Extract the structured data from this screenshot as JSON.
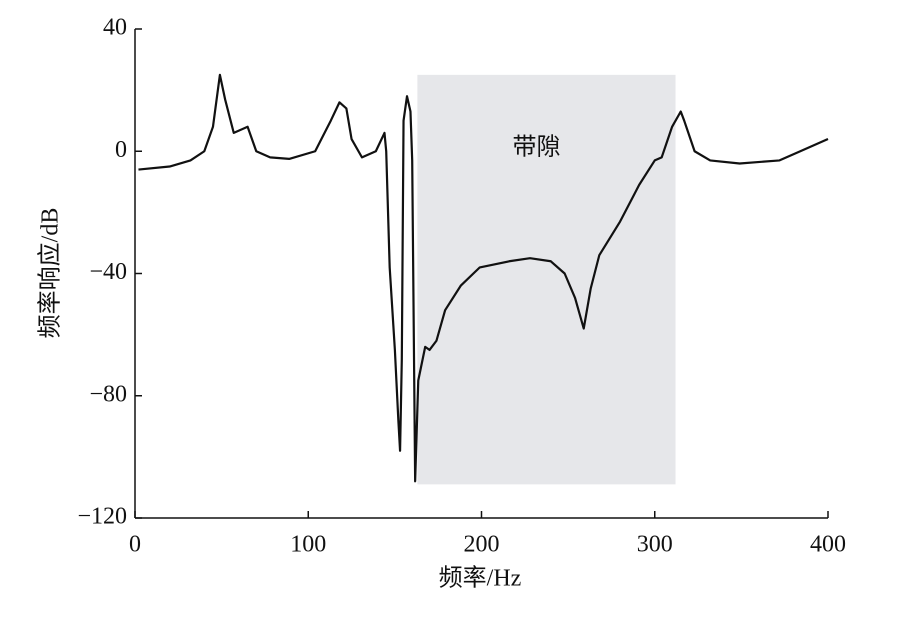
{
  "chart_data": {
    "type": "line",
    "x_label": "频率/Hz",
    "y_label": "频率响应/dB",
    "xlim": [
      0,
      400
    ],
    "xticks": [
      0,
      100,
      200,
      300,
      400
    ],
    "ylim": [
      -120,
      40
    ],
    "yticks": [
      {
        "value": -120,
        "label": "−120"
      },
      {
        "value": -80,
        "label": "−80"
      },
      {
        "value": -40,
        "label": "−40"
      },
      0,
      40
    ],
    "shaded_region": {
      "label": "带隙",
      "color": "#e6e7ea",
      "x": [
        163,
        312
      ],
      "y": [
        -109,
        25
      ]
    },
    "series": [
      {
        "color": "#111111",
        "x": [
          2,
          20,
          32,
          40,
          45,
          49,
          52,
          57,
          65,
          70,
          78,
          89,
          104,
          113,
          118,
          122,
          125,
          131,
          139,
          144,
          145,
          147,
          150,
          152,
          153,
          154,
          155,
          157,
          159,
          160,
          161.7,
          163.5,
          167.5,
          170,
          174,
          179,
          188,
          199,
          216,
          228,
          240,
          248,
          254,
          259,
          263,
          268,
          280,
          291,
          300,
          304,
          310,
          315,
          317,
          323,
          332,
          349,
          372,
          384,
          400
        ],
        "values": [
          -6,
          -5,
          -3,
          0,
          8,
          25,
          17,
          6,
          8,
          0,
          -2,
          -2.5,
          0,
          10,
          16,
          14,
          4,
          -2,
          0,
          6,
          0,
          -38,
          -65,
          -88,
          -98,
          -68,
          10,
          18,
          13,
          -3,
          -108,
          -75,
          -64,
          -65,
          -62,
          -52,
          -44,
          -38,
          -36,
          -35,
          -36,
          -40,
          -48,
          -58,
          -45,
          -34,
          -23,
          -11,
          -3,
          -2,
          8,
          13,
          10,
          0,
          -3,
          -4,
          -3,
          0,
          4
        ]
      }
    ]
  }
}
